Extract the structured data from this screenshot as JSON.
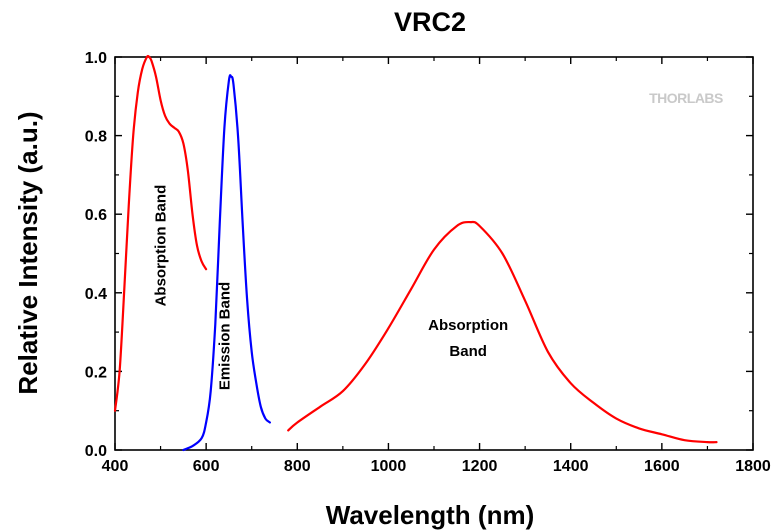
{
  "chart_data": {
    "type": "line",
    "title": "VRC2",
    "xlabel": "Wavelength (nm)",
    "ylabel": "Relative Intensity (a.u.)",
    "xlim": [
      400,
      1800
    ],
    "ylim": [
      0.0,
      1.0
    ],
    "x_ticks": [
      "400",
      "600",
      "800",
      "1000",
      "1200",
      "1400",
      "1600",
      "1800"
    ],
    "y_ticks": [
      "0.0",
      "0.2",
      "0.4",
      "0.6",
      "0.8",
      "1.0"
    ],
    "grid": false,
    "legend": "none",
    "watermark": "THORLABS",
    "series": [
      {
        "color": "#ff0000",
        "x": [
          400,
          410,
          420,
          430,
          440,
          450,
          460,
          470,
          475,
          480,
          490,
          500,
          510,
          520,
          530,
          540,
          550,
          560,
          570,
          580,
          590,
          600
        ],
        "y": [
          0.1,
          0.2,
          0.4,
          0.62,
          0.8,
          0.91,
          0.97,
          1.0,
          1.0,
          0.99,
          0.95,
          0.89,
          0.85,
          0.83,
          0.82,
          0.81,
          0.78,
          0.71,
          0.6,
          0.52,
          0.48,
          0.46
        ]
      },
      {
        "color": "#0000ff",
        "x": [
          550,
          570,
          590,
          600,
          610,
          620,
          630,
          640,
          650,
          655,
          660,
          670,
          680,
          690,
          700,
          710,
          720,
          730,
          740
        ],
        "y": [
          0.0,
          0.01,
          0.03,
          0.07,
          0.15,
          0.32,
          0.58,
          0.82,
          0.94,
          0.95,
          0.93,
          0.8,
          0.58,
          0.38,
          0.25,
          0.17,
          0.11,
          0.08,
          0.07
        ]
      },
      {
        "color": "#ff0000",
        "x": [
          780,
          800,
          850,
          900,
          950,
          1000,
          1050,
          1100,
          1150,
          1180,
          1200,
          1250,
          1300,
          1350,
          1400,
          1450,
          1500,
          1550,
          1600,
          1650,
          1700,
          1720
        ],
        "y": [
          0.05,
          0.07,
          0.11,
          0.15,
          0.22,
          0.31,
          0.41,
          0.51,
          0.57,
          0.58,
          0.57,
          0.5,
          0.38,
          0.25,
          0.17,
          0.12,
          0.08,
          0.055,
          0.04,
          0.025,
          0.02,
          0.02
        ]
      }
    ],
    "annotations": [
      {
        "lines": [
          "Absorption Band"
        ],
        "x": 500,
        "y": 0.52,
        "rotation": -90
      },
      {
        "lines": [
          "Emission Band"
        ],
        "x": 640,
        "y": 0.29,
        "rotation": -90
      },
      {
        "lines": [
          "Absorption",
          "Band"
        ],
        "x": 1175,
        "y": 0.29,
        "rotation": 0
      }
    ]
  }
}
